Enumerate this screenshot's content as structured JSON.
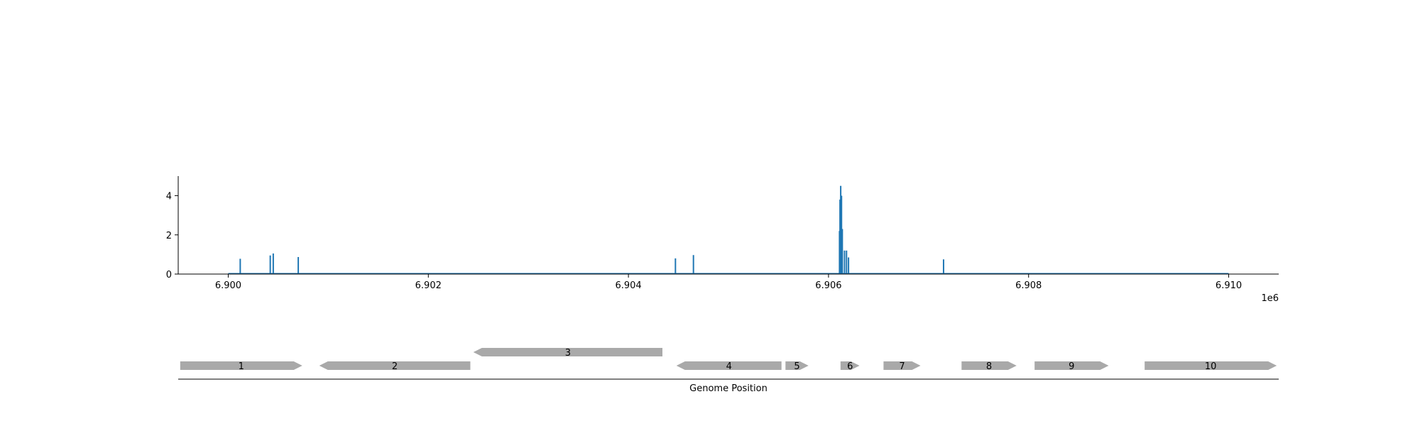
{
  "chart_data": [
    {
      "type": "bar",
      "description_type": "coverage-track",
      "xlim": [
        6899500,
        6910500
      ],
      "ylim": [
        0,
        5
      ],
      "yticks": [
        0,
        2,
        4
      ],
      "xticks": [
        6900000,
        6902000,
        6904000,
        6906000,
        6908000,
        6910000
      ],
      "xtick_labels": [
        "6.900",
        "6.902",
        "6.904",
        "6.906",
        "6.908",
        "6.910"
      ],
      "x_offset_label": "1e6",
      "baseline": {
        "x_start": 6900000,
        "x_end": 6910000,
        "value": 0.02
      },
      "color": "#1f77b4",
      "spikes": [
        {
          "x": 6900120,
          "value": 0.78
        },
        {
          "x": 6900420,
          "value": 0.95
        },
        {
          "x": 6900450,
          "value": 1.05
        },
        {
          "x": 6900700,
          "value": 0.87
        },
        {
          "x": 6904470,
          "value": 0.8
        },
        {
          "x": 6904650,
          "value": 0.97
        },
        {
          "x": 6906110,
          "value": 2.2
        },
        {
          "x": 6906115,
          "value": 3.8
        },
        {
          "x": 6906122,
          "value": 4.5
        },
        {
          "x": 6906130,
          "value": 4.0
        },
        {
          "x": 6906138,
          "value": 2.3
        },
        {
          "x": 6906160,
          "value": 1.2
        },
        {
          "x": 6906180,
          "value": 1.2
        },
        {
          "x": 6906200,
          "value": 0.85
        },
        {
          "x": 6907150,
          "value": 0.75
        }
      ]
    },
    {
      "type": "gene-track",
      "xlabel": "Genome Position",
      "xlim": [
        6899500,
        6910500
      ],
      "color": "#a9a9a9",
      "genes": [
        {
          "label": "1",
          "start": 6899520,
          "end": 6900740,
          "strand": "+",
          "row": 0
        },
        {
          "label": "2",
          "start": 6900910,
          "end": 6902420,
          "strand": "-",
          "row": 0
        },
        {
          "label": "3",
          "start": 6902450,
          "end": 6904340,
          "strand": "-",
          "row": 1
        },
        {
          "label": "4",
          "start": 6904480,
          "end": 6905530,
          "strand": "-",
          "row": 0
        },
        {
          "label": "5",
          "start": 6905570,
          "end": 6905800,
          "strand": "+",
          "row": 0
        },
        {
          "label": "6",
          "start": 6906120,
          "end": 6906310,
          "strand": "+",
          "row": 0
        },
        {
          "label": "7",
          "start": 6906550,
          "end": 6906920,
          "strand": "+",
          "row": 0
        },
        {
          "label": "8",
          "start": 6907330,
          "end": 6907880,
          "strand": "+",
          "row": 0
        },
        {
          "label": "9",
          "start": 6908060,
          "end": 6908800,
          "strand": "+",
          "row": 0
        },
        {
          "label": "10",
          "start": 6909160,
          "end": 6910480,
          "strand": "+",
          "row": 0
        }
      ]
    }
  ]
}
